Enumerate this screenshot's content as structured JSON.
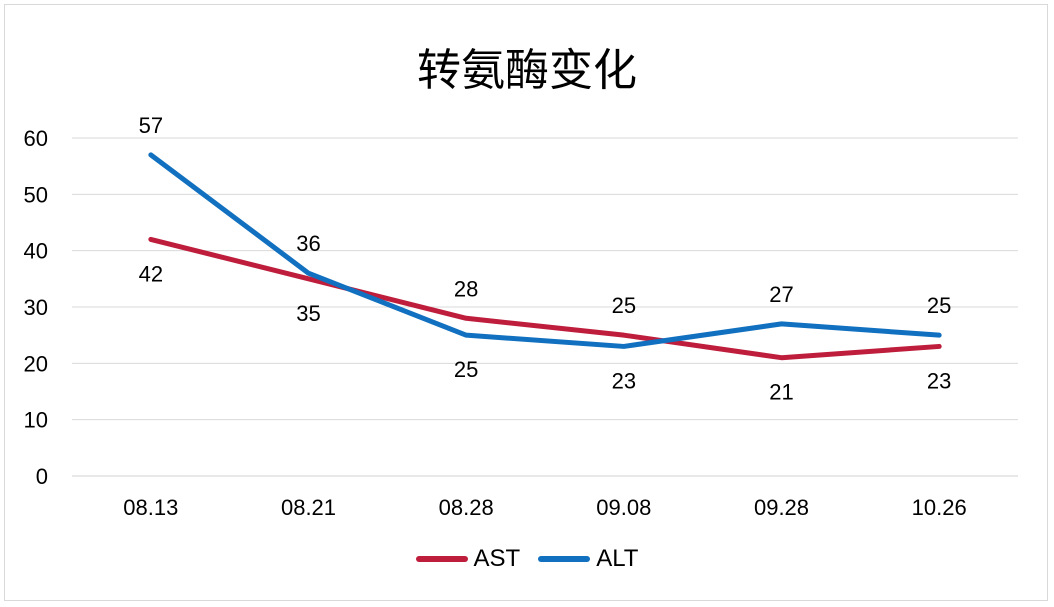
{
  "chart_data": {
    "type": "line",
    "title": "转氨酶变化",
    "categories": [
      "08.13",
      "08.21",
      "08.28",
      "09.08",
      "09.28",
      "10.26"
    ],
    "series": [
      {
        "name": "AST",
        "color": "#be1e3c",
        "values": [
          42,
          35,
          28,
          25,
          21,
          23
        ]
      },
      {
        "name": "ALT",
        "color": "#1170bf",
        "values": [
          57,
          36,
          25,
          23,
          27,
          25
        ]
      }
    ],
    "ylim": [
      0,
      60
    ],
    "yticks": [
      0,
      10,
      20,
      30,
      40,
      50,
      60
    ],
    "grid": true,
    "legend": "bottom",
    "xlabel": "",
    "ylabel": ""
  }
}
